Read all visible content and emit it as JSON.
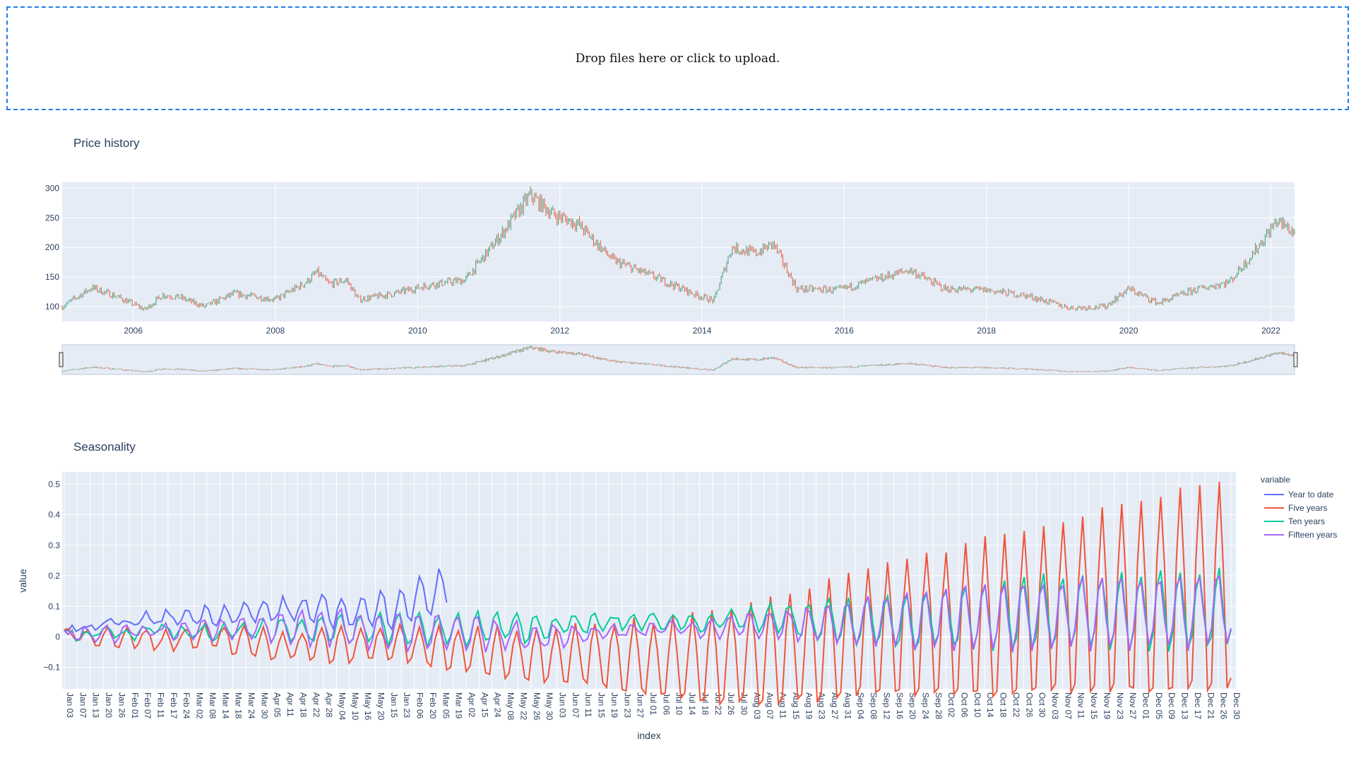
{
  "upload": {
    "text": "Drop files here or click to upload."
  },
  "price_panel": {
    "title": "Price history"
  },
  "seasonality_panel": {
    "title": "Seasonality"
  },
  "colors": {
    "plot_bg": "#e5ecf6",
    "grid": "#ffffff",
    "axis_text": "#2a3f5f",
    "increasing": "#3d9970",
    "decreasing": "#ef553b",
    "series": [
      "#636efa",
      "#ef553b",
      "#00cc96",
      "#ab63fa"
    ]
  },
  "chart_data": [
    {
      "type": "candlestick",
      "title": "Price history",
      "x_range": [
        "2005-01",
        "2022-05"
      ],
      "ylim": [
        75,
        310
      ],
      "xticks": [
        "2006",
        "2008",
        "2010",
        "2012",
        "2014",
        "2016",
        "2018",
        "2020",
        "2022"
      ],
      "yticks": [
        "100",
        "150",
        "200",
        "250",
        "300"
      ],
      "range_slider": true,
      "trend": [
        [
          "2005-01",
          100
        ],
        [
          "2005-06",
          132
        ],
        [
          "2005-10",
          118
        ],
        [
          "2006-03",
          95
        ],
        [
          "2006-06",
          120
        ],
        [
          "2006-09",
          115
        ],
        [
          "2007-01",
          100
        ],
        [
          "2007-06",
          122
        ],
        [
          "2008-01",
          112
        ],
        [
          "2008-06",
          140
        ],
        [
          "2008-08",
          158
        ],
        [
          "2008-10",
          138
        ],
        [
          "2009-01",
          145
        ],
        [
          "2009-03",
          112
        ],
        [
          "2009-09",
          122
        ],
        [
          "2010-03",
          137
        ],
        [
          "2010-09",
          145
        ],
        [
          "2011-03",
          220
        ],
        [
          "2011-08",
          288
        ],
        [
          "2011-12",
          255
        ],
        [
          "2012-04",
          240
        ],
        [
          "2012-10",
          178
        ],
        [
          "2013-05",
          150
        ],
        [
          "2013-12",
          120
        ],
        [
          "2014-03",
          110
        ],
        [
          "2014-06",
          200
        ],
        [
          "2014-10",
          190
        ],
        [
          "2015-01",
          206
        ],
        [
          "2015-05",
          130
        ],
        [
          "2015-12",
          128
        ],
        [
          "2016-06",
          145
        ],
        [
          "2016-12",
          162
        ],
        [
          "2017-06",
          130
        ],
        [
          "2018-01",
          128
        ],
        [
          "2018-08",
          118
        ],
        [
          "2019-03",
          98
        ],
        [
          "2019-09",
          100
        ],
        [
          "2020-01",
          130
        ],
        [
          "2020-06",
          106
        ],
        [
          "2020-12",
          128
        ],
        [
          "2021-06",
          142
        ],
        [
          "2021-10",
          190
        ],
        [
          "2022-02",
          245
        ],
        [
          "2022-05",
          225
        ]
      ]
    },
    {
      "type": "line",
      "title": "Seasonality",
      "xlabel": "index",
      "ylabel": "value",
      "ylim": [
        -0.17,
        0.54
      ],
      "yticks": [
        "−0.1",
        "0",
        "0.1",
        "0.2",
        "0.3",
        "0.4",
        "0.5"
      ],
      "legend": {
        "title": "variable",
        "position": "right"
      },
      "xticks": [
        "Jan 03",
        "Jan 07",
        "Jan 13",
        "Jan 20",
        "Jan 26",
        "Feb 01",
        "Feb 07",
        "Feb 11",
        "Feb 17",
        "Feb 24",
        "Mar 02",
        "Mar 08",
        "Mar 14",
        "Mar 18",
        "Mar 24",
        "Mar 30",
        "Apr 05",
        "Apr 11",
        "Apr 18",
        "Apr 22",
        "Apr 28",
        "May 04",
        "May 10",
        "May 16",
        "May 20",
        "Jan 15",
        "Jan 23",
        "Feb 06",
        "Feb 20",
        "Mar 05",
        "Mar 19",
        "Apr 02",
        "Apr 15",
        "Apr 24",
        "May 08",
        "May 22",
        "May 26",
        "May 30",
        "Jun 03",
        "Jun 07",
        "Jun 11",
        "Jun 15",
        "Jun 19",
        "Jun 23",
        "Jun 27",
        "Jul 01",
        "Jul 06",
        "Jul 10",
        "Jul 14",
        "Jul 18",
        "Jul 22",
        "Jul 26",
        "Jul 30",
        "Aug 03",
        "Aug 07",
        "Aug 11",
        "Aug 15",
        "Aug 19",
        "Aug 23",
        "Aug 27",
        "Aug 31",
        "Sep 04",
        "Sep 08",
        "Sep 12",
        "Sep 16",
        "Sep 20",
        "Sep 24",
        "Sep 28",
        "Oct 02",
        "Oct 06",
        "Oct 10",
        "Oct 14",
        "Oct 18",
        "Oct 22",
        "Oct 26",
        "Oct 30",
        "Nov 03",
        "Nov 07",
        "Nov 11",
        "Nov 15",
        "Nov 19",
        "Nov 23",
        "Nov 27",
        "Dec 01",
        "Dec 05",
        "Dec 09",
        "Dec 13",
        "Dec 17",
        "Dec 21",
        "Dec 26",
        "Dec 30"
      ],
      "series": [
        {
          "name": "Year to date",
          "trend": [
            0.02,
            0.04,
            0.06,
            0.07,
            0.08,
            0.09,
            0.08,
            0.09,
            0.15,
            0.12,
            0.09,
            0.07,
            0.04,
            0.02,
            0.02,
            0.01,
            0.02,
            0.01,
            0.0,
            -0.02,
            -0.04,
            -0.08,
            -0.03,
            0.0,
            0.02,
            0.03
          ],
          "cycle": [
            0.01,
            0.015,
            0.02,
            0.025,
            0.03,
            0.04,
            0.05,
            0.06,
            0.07,
            0.06,
            0.05,
            0.03,
            0.02,
            0.0,
            0.0,
            0.0,
            0.0,
            0.0,
            0.0,
            0.0,
            0.0,
            0.0,
            0.0,
            0.0,
            0.0,
            0.0
          ]
        },
        {
          "name": "Five years",
          "trend": [
            0.01,
            0.0,
            -0.01,
            0.0,
            -0.02,
            -0.03,
            -0.03,
            -0.02,
            -0.04,
            -0.05,
            -0.06,
            -0.06,
            -0.07,
            -0.08,
            -0.08,
            -0.06,
            -0.04,
            0.0,
            0.02,
            0.03,
            0.05,
            0.07,
            0.09,
            0.11,
            0.13,
            0.15
          ],
          "cycle": [
            0.02,
            0.03,
            0.03,
            0.04,
            0.05,
            0.05,
            0.06,
            0.06,
            0.07,
            0.08,
            0.09,
            0.1,
            0.12,
            0.14,
            0.16,
            0.18,
            0.2,
            0.22,
            0.24,
            0.26,
            0.28,
            0.3,
            0.32,
            0.34,
            0.36,
            0.37
          ]
        },
        {
          "name": "Ten years",
          "trend": [
            0.01,
            0.01,
            0.02,
            0.01,
            0.02,
            0.02,
            0.03,
            0.03,
            0.02,
            0.03,
            0.03,
            0.04,
            0.05,
            0.05,
            0.05,
            0.06,
            0.05,
            0.05,
            0.05,
            0.06,
            0.07,
            0.08,
            0.08,
            0.08,
            0.09,
            0.09
          ],
          "cycle": [
            0.01,
            0.02,
            0.02,
            0.02,
            0.03,
            0.04,
            0.05,
            0.05,
            0.05,
            0.05,
            0.04,
            0.03,
            0.02,
            0.02,
            0.03,
            0.04,
            0.06,
            0.08,
            0.09,
            0.1,
            0.11,
            0.12,
            0.12,
            0.13,
            0.13,
            0.13
          ]
        },
        {
          "name": "Fifteen years",
          "trend": [
            0.01,
            0.01,
            0.02,
            0.02,
            0.03,
            0.03,
            0.03,
            0.02,
            0.01,
            0.01,
            0.0,
            0.01,
            0.02,
            0.03,
            0.03,
            0.04,
            0.04,
            0.05,
            0.05,
            0.06,
            0.07,
            0.07,
            0.08,
            0.08,
            0.08,
            0.09
          ],
          "cycle": [
            0.01,
            0.02,
            0.02,
            0.03,
            0.04,
            0.05,
            0.06,
            0.06,
            0.06,
            0.05,
            0.04,
            0.03,
            0.02,
            0.02,
            0.03,
            0.04,
            0.06,
            0.08,
            0.09,
            0.1,
            0.11,
            0.11,
            0.12,
            0.12,
            0.12,
            0.12
          ]
        }
      ]
    }
  ]
}
